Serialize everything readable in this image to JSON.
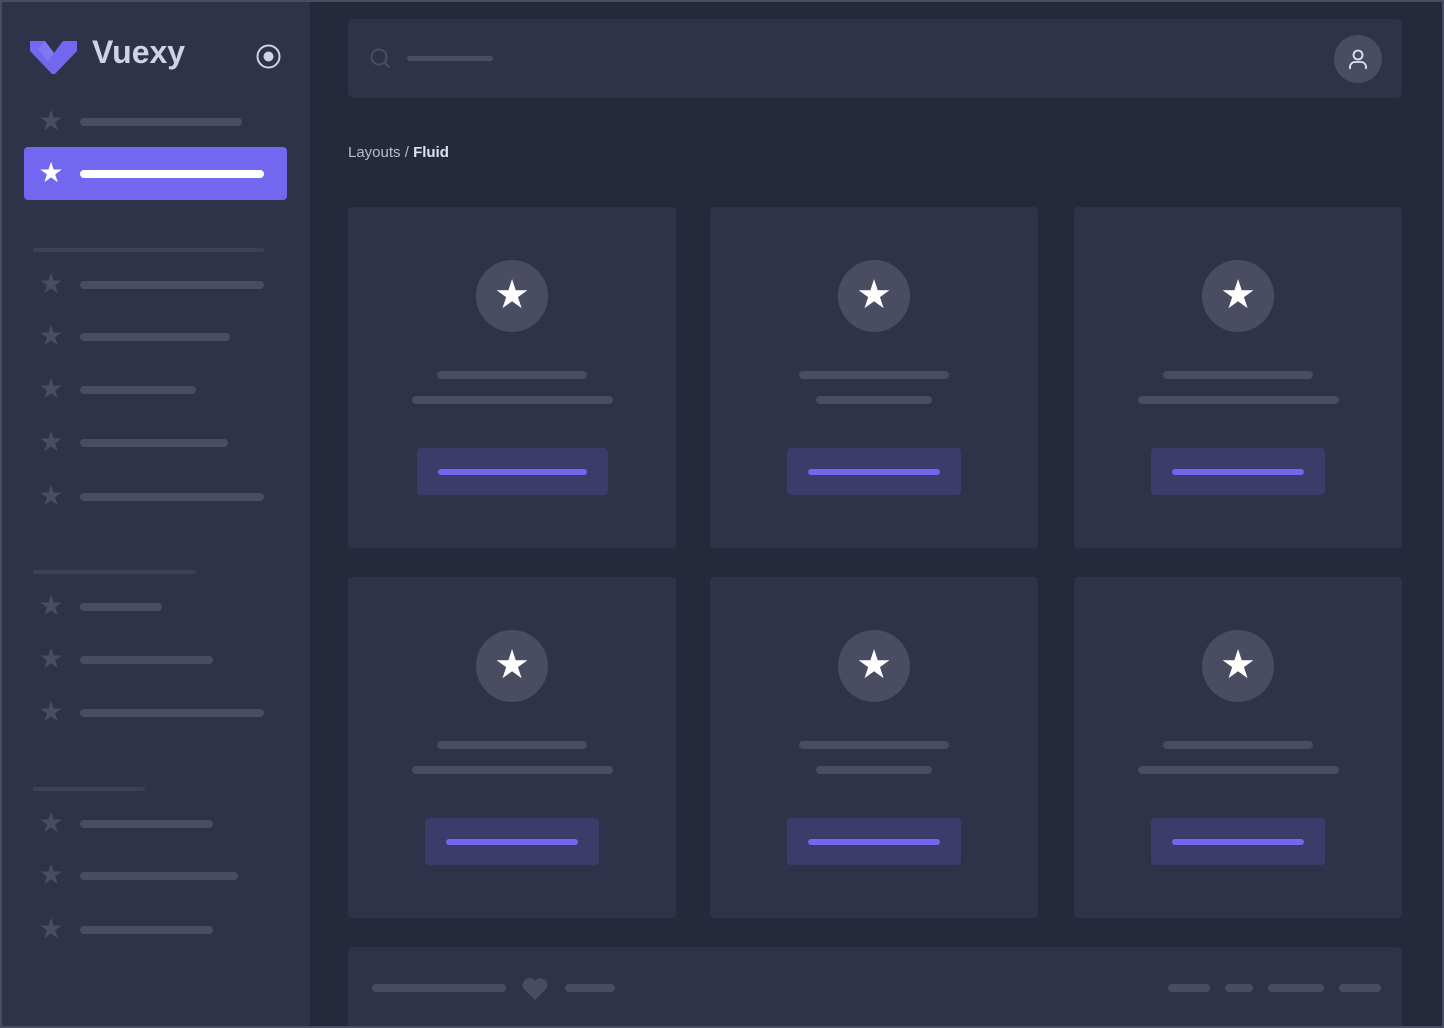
{
  "brand": {
    "name": "Vuexy",
    "accent": "#7367f0"
  },
  "sidebar": {
    "toggle_icon": "radio-circle-icon",
    "item_icon": "star-icon",
    "active_index": 1
  },
  "search": {
    "icon": "search-icon"
  },
  "user": {
    "icon": "user-icon"
  },
  "breadcrumb": {
    "parent": "Layouts",
    "separator": " / ",
    "current": "Fluid"
  },
  "cards": {
    "count": 6,
    "icon": "star-icon"
  },
  "footer": {
    "icon": "heart-icon"
  }
}
